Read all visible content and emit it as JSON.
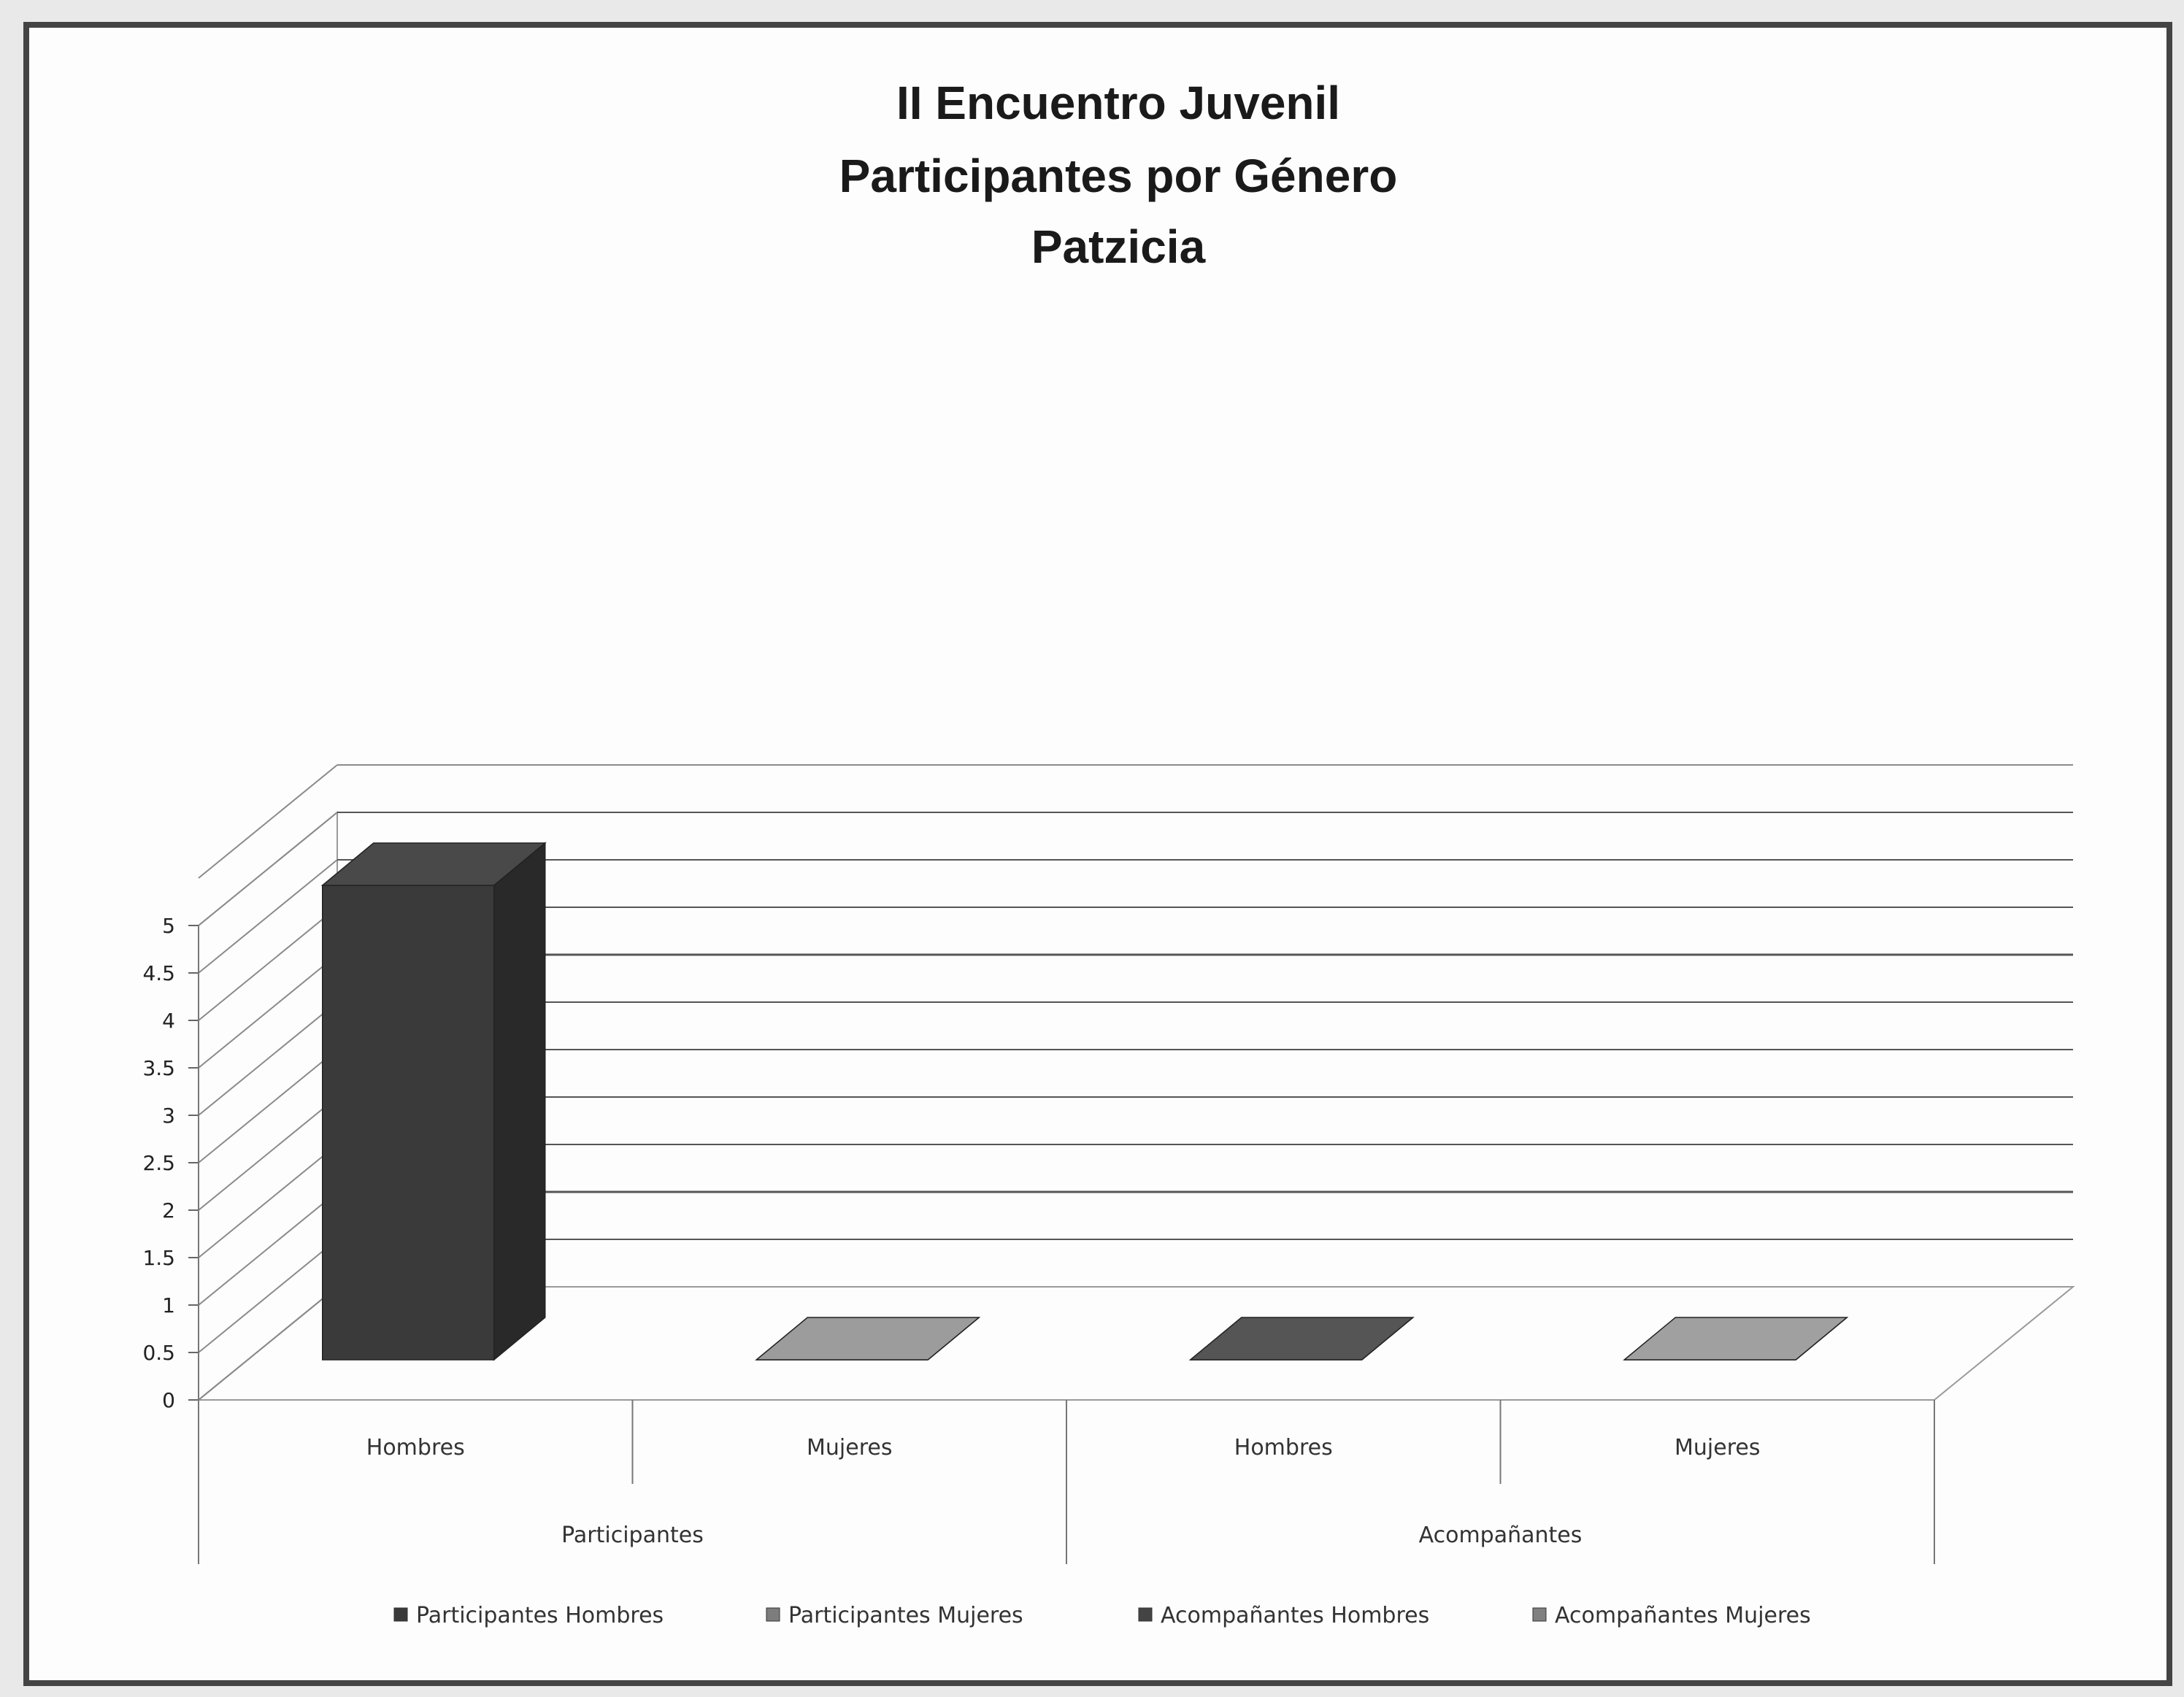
{
  "chart_data": {
    "type": "bar",
    "title_lines": [
      "II Encuentro Juvenil",
      "Participantes por Género",
      "Patzicia"
    ],
    "xlabel": "",
    "ylabel": "",
    "ylim": [
      0,
      5
    ],
    "yticks": [
      "0",
      "0.5",
      "1",
      "1.5",
      "2",
      "2.5",
      "3",
      "3.5",
      "4",
      "4.5",
      "5"
    ],
    "categories": [
      "Hombres",
      "Mujeres",
      "Hombres",
      "Mujeres"
    ],
    "groups": [
      "Participantes",
      "Acompañantes"
    ],
    "series": [
      {
        "name": "Participantes Hombres",
        "values": [
          5,
          0,
          0,
          0
        ],
        "color": "#3a3a3a"
      },
      {
        "name": "Participantes Mujeres",
        "values": [
          0,
          0,
          0,
          0
        ],
        "color": "#7d7d7d"
      },
      {
        "name": "Acompañantes Hombres",
        "values": [
          0,
          0,
          0,
          0
        ],
        "color": "#444444"
      },
      {
        "name": "Acompañantes Mujeres",
        "values": [
          0,
          0,
          0,
          0
        ],
        "color": "#808080"
      }
    ],
    "grid": true,
    "legend_position": "bottom"
  }
}
